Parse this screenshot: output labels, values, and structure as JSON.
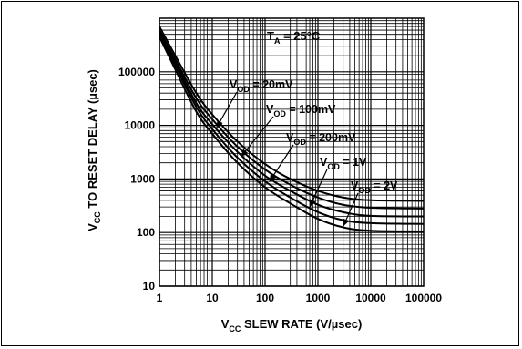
{
  "chart_data": {
    "type": "line",
    "x_scale": "log",
    "y_scale": "log",
    "xlim": [
      1,
      100000
    ],
    "ylim": [
      10,
      1000000
    ],
    "grid": true,
    "grid_minor": true,
    "x_ticks": [
      "1",
      "10",
      "100",
      "1000",
      "10000",
      "100000"
    ],
    "y_ticks": [
      "10",
      "100",
      "1000",
      "10000",
      "100000"
    ],
    "xlabel": {
      "v": "V",
      "sub": "CC",
      "rest": " SLEW RATE (V/µsec)"
    },
    "ylabel": {
      "v": "V",
      "sub": "CC",
      "rest": " TO RESET DELAY (µsec)"
    },
    "condition": {
      "t": "T",
      "sub": "A",
      "rest": " = 25°C"
    },
    "series": [
      {
        "name": {
          "v": "V",
          "sub": "OD",
          "rest": " = 20mV"
        },
        "x": [
          1,
          2,
          5,
          10,
          30,
          100,
          300,
          1000,
          3000,
          10000,
          100000
        ],
        "y": [
          700000,
          200000,
          40000,
          16000,
          5000,
          1900,
          1000,
          600,
          450,
          400,
          390
        ]
      },
      {
        "name": {
          "v": "V",
          "sub": "OD",
          "rest": " = 100mV"
        },
        "x": [
          1,
          2,
          5,
          10,
          30,
          100,
          300,
          1000,
          3000,
          10000,
          100000
        ],
        "y": [
          600000,
          170000,
          32000,
          13000,
          4000,
          1500,
          780,
          450,
          330,
          290,
          280
        ]
      },
      {
        "name": {
          "v": "V",
          "sub": "OD",
          "rest": " = 200mV"
        },
        "x": [
          1,
          2,
          5,
          10,
          30,
          100,
          300,
          1000,
          3000,
          10000,
          100000
        ],
        "y": [
          550000,
          150000,
          26000,
          10500,
          3200,
          1150,
          600,
          330,
          240,
          205,
          200
        ]
      },
      {
        "name": {
          "v": "V",
          "sub": "OD",
          "rest": " = 1V"
        },
        "x": [
          1,
          2,
          5,
          10,
          30,
          100,
          300,
          1000,
          3000,
          10000,
          100000
        ],
        "y": [
          500000,
          130000,
          22000,
          8500,
          2500,
          900,
          450,
          240,
          170,
          150,
          145
        ]
      },
      {
        "name": {
          "v": "V",
          "sub": "OD",
          "rest": " = 2V"
        },
        "x": [
          1,
          2,
          5,
          10,
          30,
          100,
          300,
          1000,
          3000,
          10000,
          100000
        ],
        "y": [
          450000,
          110000,
          18000,
          7000,
          2000,
          700,
          350,
          180,
          125,
          108,
          105
        ]
      }
    ],
    "annotation_points": [
      {
        "x": 12,
        "y": 9000
      },
      {
        "x": 35,
        "y": 2600
      },
      {
        "x": 120,
        "y": 880
      },
      {
        "x": 700,
        "y": 300
      },
      {
        "x": 3000,
        "y": 130
      }
    ]
  }
}
